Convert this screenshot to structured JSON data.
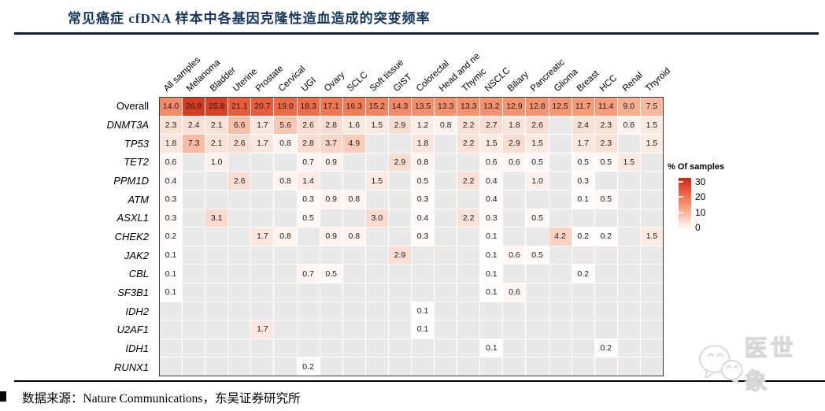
{
  "header": {
    "title": "常见癌症 cfDNA 样本中各基因克隆性造血造成的突变频率",
    "accent_color": "#17365d"
  },
  "chart_data": {
    "type": "heatmap",
    "title": "常见癌症 cfDNA 样本中各基因克隆性造血造成的突变频率",
    "unit": "% of samples",
    "columns": [
      "All samples",
      "Melanoma",
      "Bladder",
      "Uterine",
      "Prostate",
      "Cervical",
      "UGI",
      "Ovary",
      "SCLC",
      "Soft tissue",
      "GIST",
      "Colorectal",
      "Head and ne",
      "Thymic",
      "NSCLC",
      "Biliary",
      "Pancreatic",
      "Glioma",
      "Breast",
      "HCC",
      "Renal",
      "Thyroid"
    ],
    "rows": [
      {
        "name": "Overall",
        "italic": false,
        "values": [
          "14.0",
          "26.8",
          "25.8",
          "21.1",
          "20.7",
          "19.0",
          "18.3",
          "17.1",
          "16.3",
          "15.2",
          "14.3",
          "13.5",
          "13.3",
          "13.3",
          "13.2",
          "12.9",
          "12.8",
          "12.5",
          "11.7",
          "11.4",
          "9.0",
          "7.5"
        ]
      },
      {
        "name": "DNMT3A",
        "italic": true,
        "values": [
          "2.3",
          "2.4",
          "2.1",
          "6.6",
          "1.7",
          "5.6",
          "2.6",
          "2.8",
          "1.6",
          "1.5",
          "2.9",
          "1.2",
          "0.8",
          "2.2",
          "2.7",
          "1.8",
          "2.6",
          "",
          "2.4",
          "2.3",
          "0.8",
          "1.5"
        ]
      },
      {
        "name": "TP53",
        "italic": true,
        "values": [
          "1.8",
          "7.3",
          "2.1",
          "2.6",
          "1.7",
          "0.8",
          "2.8",
          "3.7",
          "4.9",
          "",
          "",
          "1.8",
          "",
          "2.2",
          "1.5",
          "2.9",
          "1.5",
          "",
          "1.7",
          "2.3",
          "",
          "1.5"
        ]
      },
      {
        "name": "TET2",
        "italic": true,
        "values": [
          "0.6",
          "",
          "1.0",
          "",
          "",
          "",
          "0.7",
          "0.9",
          "",
          "",
          "2.9",
          "0.8",
          "",
          "",
          "0.6",
          "0.6",
          "0.5",
          "",
          "0.5",
          "0.5",
          "1.5",
          ""
        ]
      },
      {
        "name": "PPM1D",
        "italic": true,
        "values": [
          "0.4",
          "",
          "",
          "2.6",
          "",
          "0.8",
          "1.4",
          "",
          "",
          "1.5",
          "",
          "0.5",
          "",
          "2.2",
          "0.4",
          "",
          "1.0",
          "",
          "0.3",
          "",
          "",
          ""
        ]
      },
      {
        "name": "ATM",
        "italic": true,
        "values": [
          "0.3",
          "",
          "",
          "",
          "",
          "",
          "0.3",
          "0.9",
          "0.8",
          "",
          "",
          "0.3",
          "",
          "",
          "0.4",
          "",
          "",
          "",
          "0.1",
          "0.5",
          "",
          ""
        ]
      },
      {
        "name": "ASXL1",
        "italic": true,
        "values": [
          "0.3",
          "",
          "3.1",
          "",
          "",
          "",
          "0.5",
          "",
          "",
          "3.0",
          "",
          "0.4",
          "",
          "2.2",
          "0.3",
          "",
          "0.5",
          "",
          "",
          "",
          "",
          ""
        ]
      },
      {
        "name": "CHEK2",
        "italic": true,
        "values": [
          "0.2",
          "",
          "",
          "",
          "1.7",
          "0.8",
          "",
          "0.9",
          "0.8",
          "",
          "",
          "0.3",
          "",
          "",
          "0.1",
          "",
          "",
          "4.2",
          "0.2",
          "0.2",
          "",
          "1.5"
        ]
      },
      {
        "name": "JAK2",
        "italic": true,
        "values": [
          "0.1",
          "",
          "",
          "",
          "",
          "",
          "",
          "",
          "",
          "",
          "2.9",
          "",
          "",
          "",
          "0.1",
          "0.6",
          "0.5",
          "",
          "",
          "",
          "",
          ""
        ]
      },
      {
        "name": "CBL",
        "italic": true,
        "values": [
          "0.1",
          "",
          "",
          "",
          "",
          "",
          "0.7",
          "0.5",
          "",
          "",
          "",
          "",
          "",
          "",
          "0.1",
          "",
          "",
          "",
          "0.2",
          "",
          "",
          ""
        ]
      },
      {
        "name": "SF3B1",
        "italic": true,
        "values": [
          "0.1",
          "",
          "",
          "",
          "",
          "",
          "",
          "",
          "",
          "",
          "",
          "",
          "",
          "",
          "0.1",
          "0.6",
          "",
          "",
          "",
          "",
          "",
          ""
        ]
      },
      {
        "name": "IDH2",
        "italic": true,
        "values": [
          "",
          "",
          "",
          "",
          "",
          "",
          "",
          "",
          "",
          "",
          "",
          "0.1",
          "",
          "",
          "",
          "",
          "",
          "",
          "",
          "",
          "",
          ""
        ]
      },
      {
        "name": "U2AF1",
        "italic": true,
        "values": [
          "",
          "",
          "",
          "",
          "1.7",
          "",
          "",
          "",
          "",
          "",
          "",
          "0.1",
          "",
          "",
          "",
          "",
          "",
          "",
          "",
          "",
          "",
          ""
        ]
      },
      {
        "name": "IDH1",
        "italic": true,
        "values": [
          "",
          "",
          "",
          "",
          "",
          "",
          "",
          "",
          "",
          "",
          "",
          "",
          "",
          "",
          "0.1",
          "",
          "",
          "",
          "",
          "0.2",
          "",
          ""
        ]
      },
      {
        "name": "RUNX1",
        "italic": true,
        "values": [
          "",
          "",
          "",
          "",
          "",
          "",
          "0.2",
          "",
          "",
          "",
          "",
          "",
          "",
          "",
          "",
          "",
          "",
          "",
          "",
          "",
          "",
          ""
        ]
      }
    ],
    "legend": {
      "title": "% Of samples",
      "ticks": [
        "30",
        "20",
        "10",
        "0"
      ],
      "position": "right"
    },
    "colors": {
      "empty_cell": "#e9e9e9",
      "scale_stops": [
        [
          0,
          "#ffffff"
        ],
        [
          2,
          "#fbe3da"
        ],
        [
          4,
          "#fad3c4"
        ],
        [
          7,
          "#f9bda4"
        ],
        [
          10,
          "#f8a685"
        ],
        [
          14,
          "#f58c69"
        ],
        [
          18,
          "#f06f4c"
        ],
        [
          22,
          "#e65536"
        ],
        [
          26,
          "#d83f24"
        ],
        [
          30,
          "#c62a17"
        ]
      ],
      "scale_min": 0,
      "scale_max": 30
    },
    "grid": true
  },
  "footer": {
    "source_text": "数据来源：Nature Communications，东吴证券研究所",
    "watermark_text": "医世象"
  }
}
